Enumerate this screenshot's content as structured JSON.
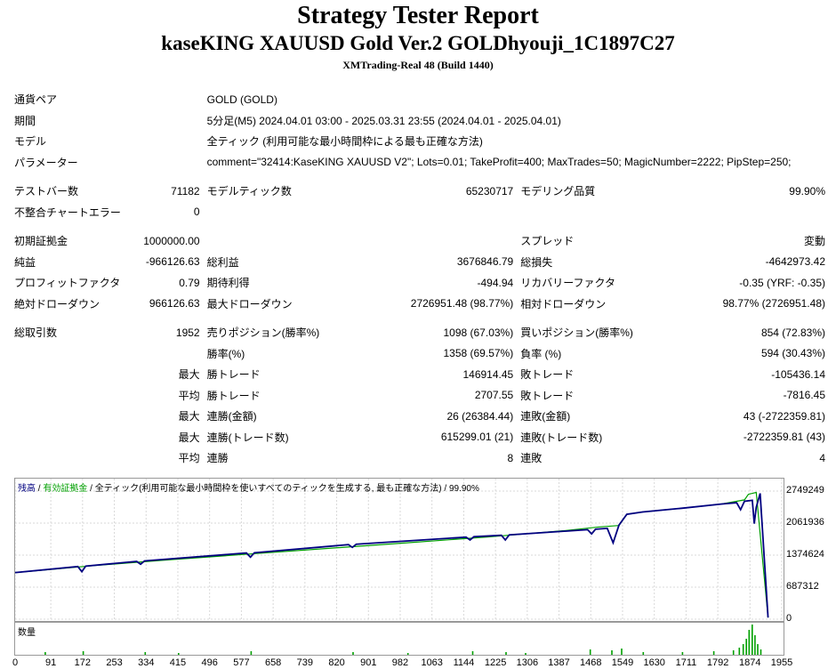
{
  "report": {
    "title": "Strategy Tester Report",
    "subtitle": "kaseKING XAUUSD Gold Ver.2 GOLDhyouji_1C1897C27",
    "server": "XMTrading-Real 48 (Build 1440)"
  },
  "info": {
    "pair_label": "通貨ペア",
    "pair_value": "GOLD (GOLD)",
    "period_label": "期間",
    "period_value": "5分足(M5) 2024.04.01 03:00 - 2025.03.31 23:55 (2024.04.01 - 2025.04.01)",
    "model_label": "モデル",
    "model_value": "全ティック (利用可能な最小時間枠による最も正確な方法)",
    "params_label": "パラメーター",
    "params_value": "comment=\"32414:KaseKING XAUUSD V2\"; Lots=0.01; TakeProfit=400; MaxTrades=50; MagicNumber=2222; PipStep=250;"
  },
  "stats": {
    "bars_label": "テストバー数",
    "bars": "71182",
    "ticks_label": "モデルティック数",
    "ticks": "65230717",
    "quality_label": "モデリング品質",
    "quality": "99.90%",
    "mismatch_label": "不整合チャートエラー",
    "mismatch": "0",
    "deposit_label": "初期証拠金",
    "deposit": "1000000.00",
    "spread_label": "スプレッド",
    "spread": "変動",
    "net_label": "純益",
    "net": "-966126.63",
    "gross_profit_label": "総利益",
    "gross_profit": "3676846.79",
    "gross_loss_label": "総損失",
    "gross_loss": "-4642973.42",
    "pf_label": "プロフィットファクタ",
    "pf": "0.79",
    "expected_label": "期待利得",
    "expected": "-494.94",
    "recovery_label": "リカバリーファクタ",
    "recovery": "-0.35 (YRF: -0.35)",
    "abs_dd_label": "絶対ドローダウン",
    "abs_dd": "966126.63",
    "max_dd_label": "最大ドローダウン",
    "max_dd": "2726951.48 (98.77%)",
    "rel_dd_label": "相対ドローダウン",
    "rel_dd": "98.77% (2726951.48)",
    "total_label": "総取引数",
    "total": "1952",
    "short_label": "売りポジション(勝率%)",
    "short": "1098 (67.03%)",
    "long_label": "買いポジション(勝率%)",
    "long": "854 (72.83%)",
    "winrate_label": "勝率(%)",
    "winrate": "1358 (69.57%)",
    "lossrate_label": "負率 (%)",
    "lossrate": "594 (30.43%)",
    "max_label": "最大",
    "avg_label": "平均",
    "win_trade_label": "勝トレード",
    "loss_trade_label": "敗トレード",
    "largest_win": "146914.45",
    "largest_loss": "-105436.14",
    "avg_win": "2707.55",
    "avg_loss": "-7816.45",
    "max_cons_win_label": "連勝(金額)",
    "max_cons_win": "26 (26384.44)",
    "max_cons_loss_label": "連敗(金額)",
    "max_cons_loss": "43 (-2722359.81)",
    "max_cons_profit_label": "連勝(トレード数)",
    "max_cons_profit": "615299.01 (21)",
    "max_cons_lossamt_label": "連敗(トレード数)",
    "max_cons_lossamt": "-2722359.81 (43)",
    "avg_cons_win_label": "連勝",
    "avg_cons_win": "8",
    "avg_cons_loss_label": "連敗",
    "avg_cons_loss": "4"
  },
  "chart": {
    "legend_balance": "残高",
    "legend_sep1": " / ",
    "legend_equity": "有効証拠金",
    "legend_sep2": " / ",
    "legend_rest": "全ティック(利用可能な最小時間枠を使いすべてのティックを生成する, 最も正確な方法) / 99.90%",
    "volume_label": "数量",
    "balance_color": "#00a000",
    "equity_color": "#000080",
    "volume_color": "#00a000"
  },
  "chart_data": {
    "type": "line",
    "title": "",
    "y_ticks": [
      "2749249",
      "2061936",
      "1374624",
      "687312",
      "0"
    ],
    "x_ticks": [
      "0",
      "91",
      "172",
      "253",
      "334",
      "415",
      "496",
      "577",
      "658",
      "739",
      "820",
      "901",
      "982",
      "1063",
      "1144",
      "1225",
      "1306",
      "1387",
      "1468",
      "1549",
      "1630",
      "1711",
      "1792",
      "1874",
      "1955"
    ],
    "xlim": [
      0,
      1955
    ],
    "ylim": [
      0,
      2749249
    ],
    "series": [
      {
        "name": "残高",
        "x": [
          0,
          200,
          400,
          600,
          800,
          1000,
          1200,
          1400,
          1490,
          1540,
          1560,
          1600,
          1700,
          1800,
          1860,
          1870,
          1890,
          1920
        ],
        "y": [
          1000000,
          1150000,
          1280000,
          1400000,
          1520000,
          1640000,
          1760000,
          1900000,
          1980000,
          2010000,
          2250000,
          2300000,
          2380000,
          2470000,
          2560000,
          2680000,
          2720000,
          33873
        ]
      },
      {
        "name": "有効証拠金",
        "x": [
          0,
          160,
          170,
          180,
          310,
          320,
          330,
          590,
          600,
          610,
          850,
          860,
          870,
          1150,
          1160,
          1170,
          1240,
          1250,
          1260,
          1460,
          1470,
          1480,
          1510,
          1525,
          1540,
          1560,
          1600,
          1700,
          1800,
          1840,
          1850,
          1860,
          1880,
          1885,
          1890,
          1900,
          1920
        ],
        "y": [
          1000000,
          1130000,
          1020000,
          1140000,
          1240000,
          1180000,
          1250000,
          1420000,
          1330000,
          1425000,
          1600000,
          1540000,
          1610000,
          1760000,
          1700000,
          1770000,
          1800000,
          1700000,
          1810000,
          1920000,
          1830000,
          1930000,
          1950000,
          1640000,
          2020000,
          2250000,
          2300000,
          2380000,
          2470000,
          2500000,
          2350000,
          2530000,
          2550000,
          2050000,
          2400000,
          2700000,
          33873
        ]
      }
    ]
  }
}
